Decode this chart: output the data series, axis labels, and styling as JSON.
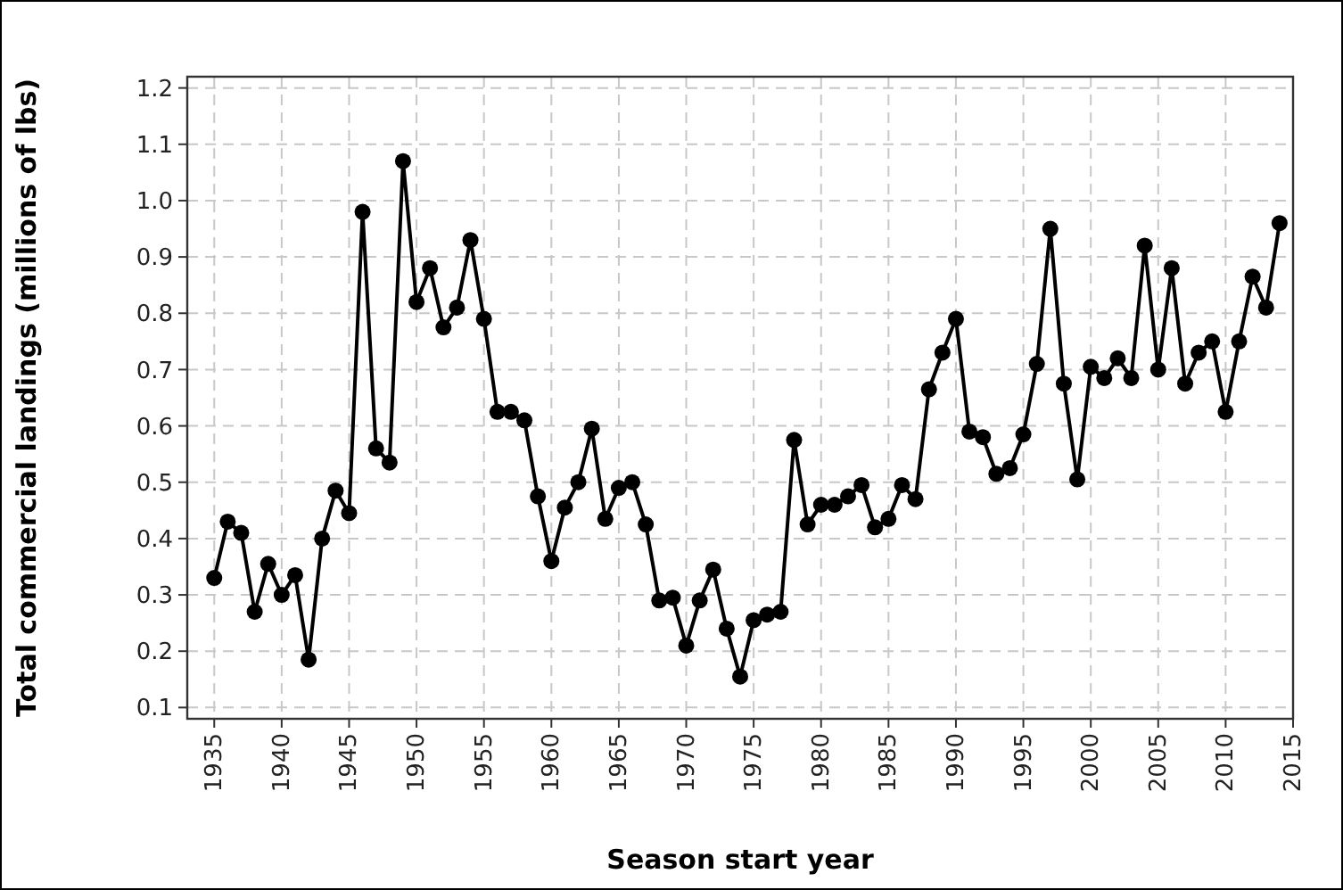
{
  "chart_data": {
    "type": "line",
    "xlabel": "Season start year",
    "ylabel": "Total commercial landings (millions of lbs)",
    "x": [
      1935,
      1936,
      1937,
      1938,
      1939,
      1940,
      1941,
      1942,
      1943,
      1944,
      1945,
      1946,
      1947,
      1948,
      1949,
      1950,
      1951,
      1952,
      1953,
      1954,
      1955,
      1956,
      1957,
      1958,
      1959,
      1960,
      1961,
      1962,
      1963,
      1964,
      1965,
      1966,
      1967,
      1968,
      1969,
      1970,
      1971,
      1972,
      1973,
      1974,
      1975,
      1976,
      1977,
      1978,
      1979,
      1980,
      1981,
      1982,
      1983,
      1984,
      1985,
      1986,
      1987,
      1988,
      1989,
      1990,
      1991,
      1992,
      1993,
      1994,
      1995,
      1996,
      1997,
      1998,
      1999,
      2000,
      2001,
      2002,
      2003,
      2004,
      2005,
      2006,
      2007,
      2008,
      2009,
      2010,
      2011,
      2012,
      2013,
      2014
    ],
    "series": [
      {
        "color": "#000000",
        "values": [
          0.33,
          0.43,
          0.41,
          0.27,
          0.355,
          0.3,
          0.335,
          0.185,
          0.4,
          0.485,
          0.445,
          0.98,
          0.56,
          0.535,
          1.07,
          0.82,
          0.88,
          0.775,
          0.81,
          0.93,
          0.79,
          0.625,
          0.625,
          0.61,
          0.475,
          0.36,
          0.455,
          0.5,
          0.595,
          0.435,
          0.49,
          0.5,
          0.425,
          0.29,
          0.295,
          0.21,
          0.29,
          0.345,
          0.24,
          0.155,
          0.255,
          0.265,
          0.27,
          0.575,
          0.425,
          0.46,
          0.46,
          0.475,
          0.495,
          0.42,
          0.435,
          0.495,
          0.47,
          0.665,
          0.73,
          0.79,
          0.59,
          0.58,
          0.515,
          0.525,
          0.585,
          0.71,
          0.95,
          0.675,
          0.505,
          0.705,
          0.685,
          0.72,
          0.685,
          0.92,
          0.7,
          0.88,
          0.675,
          0.73,
          0.75,
          0.625,
          0.75,
          0.865,
          0.81,
          0.96
        ]
      }
    ],
    "xlim": [
      1933,
      2015
    ],
    "xticks": [
      1935,
      1940,
      1945,
      1950,
      1955,
      1960,
      1965,
      1970,
      1975,
      1980,
      1985,
      1990,
      1995,
      2000,
      2005,
      2010,
      2015
    ],
    "ylim": [
      0.08,
      1.22
    ],
    "yticks": [
      {
        "value": 0.1,
        "label": "0.1"
      },
      {
        "value": 0.2,
        "label": "0.2"
      },
      {
        "value": 0.3,
        "label": "0.3"
      },
      {
        "value": 0.4,
        "label": "0.4"
      },
      {
        "value": 0.5,
        "label": "0.5"
      },
      {
        "value": 0.6,
        "label": "0.6"
      },
      {
        "value": 0.7,
        "label": "0.7"
      },
      {
        "value": 0.8,
        "label": "0.8"
      },
      {
        "value": 0.9,
        "label": "0.9"
      },
      {
        "value": 1.0,
        "label": "1.0"
      },
      {
        "value": 1.1,
        "label": "1.1"
      },
      {
        "value": 1.2,
        "label": "1.2"
      }
    ],
    "grid": true,
    "marker": "circle",
    "line_style": "solid"
  }
}
